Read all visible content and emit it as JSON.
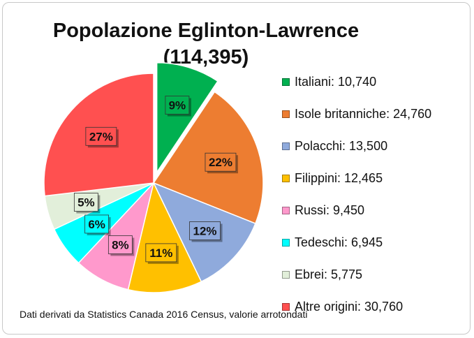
{
  "chart_data": {
    "type": "pie",
    "title": "Popolazione Eglinton-Lawrence",
    "subtitle": "(114,395)",
    "slices": [
      {
        "label": "Italiani",
        "value": 10740,
        "percent_label": "9%",
        "color": "#00b050",
        "exploded": true
      },
      {
        "label": "Isole britanniche",
        "value": 24760,
        "percent_label": "22%",
        "color": "#ed7d31",
        "exploded": false
      },
      {
        "label": "Polacchi",
        "value": 13500,
        "percent_label": "12%",
        "color": "#8faadc",
        "exploded": false
      },
      {
        "label": "Filippini",
        "value": 12465,
        "percent_label": "11%",
        "color": "#ffc000",
        "exploded": false
      },
      {
        "label": "Russi",
        "value": 9450,
        "percent_label": "8%",
        "color": "#ff99cc",
        "exploded": false
      },
      {
        "label": "Tedeschi",
        "value": 6945,
        "percent_label": "6%",
        "color": "#00ffff",
        "exploded": false
      },
      {
        "label": "Ebrei",
        "value": 5775,
        "percent_label": "5%",
        "color": "#e2efda",
        "exploded": false
      },
      {
        "label": "Altre origini",
        "value": 30760,
        "percent_label": "27%",
        "color": "#ff5050",
        "exploded": false
      }
    ],
    "legend": [
      "Italiani: 10,740",
      "Isole britanniche: 24,760",
      "Polacchi: 13,500",
      "Filippini: 12,465",
      "Russi: 9,450",
      "Tedeschi: 6,945",
      "Ebrei: 5,775",
      "Altre origini: 30,760"
    ],
    "legend_position": "right",
    "note": "Dati derivati da Statistics Canada 2016 Census, valorie arrotondati"
  }
}
